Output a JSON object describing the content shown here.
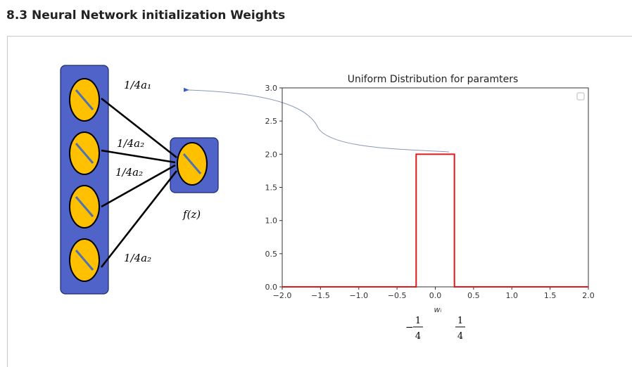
{
  "page": {
    "heading": "8.3 Neural Network initialization Weights"
  },
  "diagram": {
    "weight_labels": [
      "1/4a₁",
      "1/4a₂",
      "1/4a₂",
      "1/4a₂"
    ],
    "output_label": "f(z)",
    "colors": {
      "layer_box": "#4f63c9",
      "neuron_fill": "#ffc000",
      "neuron_stroke": "#000000",
      "neuron_line": "#4f72b0",
      "connector": "#7f8fb0"
    }
  },
  "chart_data": {
    "type": "line",
    "title": "Uniform Distribution for paramters",
    "xlabel": "wᵢ",
    "ylabel": "",
    "xlim": [
      -2.0,
      2.0
    ],
    "ylim": [
      0.0,
      3.0
    ],
    "xticks": [
      "−2.0",
      "−1.5",
      "−1.0",
      "−0.5",
      "0.0",
      "0.5",
      "1.0",
      "1.5",
      "2.0"
    ],
    "xtick_values": [
      -2.0,
      -1.5,
      -1.0,
      -0.5,
      0.0,
      0.5,
      1.0,
      1.5,
      2.0
    ],
    "yticks": [
      "0.0",
      "0.5",
      "1.0",
      "1.5",
      "2.0",
      "2.5",
      "3.0"
    ],
    "ytick_values": [
      0.0,
      0.5,
      1.0,
      1.5,
      2.0,
      2.5,
      3.0
    ],
    "series": [
      {
        "color": "#e0191c",
        "points": [
          [
            -2.0,
            0.0
          ],
          [
            -0.25,
            0.0
          ],
          [
            -0.25,
            2.0
          ],
          [
            0.25,
            2.0
          ],
          [
            0.25,
            0.0
          ],
          [
            2.0,
            0.0
          ]
        ]
      }
    ],
    "grid": false,
    "legend": "top-right (empty)",
    "annotations": {
      "left_bound": {
        "sign": "−",
        "numerator": "1",
        "denominator": "4"
      },
      "right_bound": {
        "sign": "",
        "numerator": "1",
        "denominator": "4"
      }
    }
  }
}
